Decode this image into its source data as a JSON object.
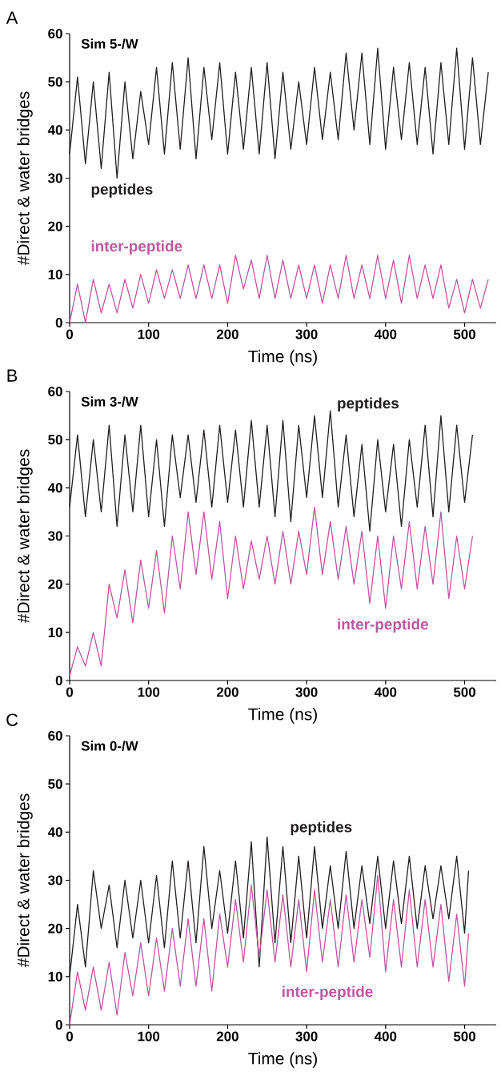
{
  "chart_data": [
    {
      "type": "line",
      "title": "Sim 5-/W",
      "xlabel": "Time (ns)",
      "ylabel": "#Direct & water bridges",
      "annotations": [
        "A"
      ],
      "xlim": [
        0,
        540
      ],
      "ylim": [
        0,
        60
      ],
      "xticks": [
        0,
        100,
        200,
        300,
        400,
        500
      ],
      "yticks": [
        0,
        10,
        20,
        30,
        40,
        50,
        60
      ],
      "x": [
        0,
        10,
        20,
        30,
        40,
        50,
        60,
        70,
        80,
        90,
        100,
        110,
        120,
        130,
        140,
        150,
        160,
        170,
        180,
        190,
        200,
        210,
        220,
        230,
        240,
        250,
        260,
        270,
        280,
        290,
        300,
        310,
        320,
        330,
        340,
        350,
        360,
        370,
        380,
        390,
        400,
        410,
        420,
        430,
        440,
        450,
        460,
        470,
        480,
        490,
        500,
        510,
        520,
        530
      ],
      "series": [
        {
          "name": "peptides",
          "color": "#231f20",
          "values": [
            35,
            51,
            33,
            50,
            32,
            52,
            30,
            50,
            34,
            48,
            37,
            53,
            35,
            54,
            36,
            55,
            34,
            53,
            38,
            54,
            35,
            52,
            36,
            53,
            35,
            54,
            34,
            52,
            36,
            50,
            37,
            53,
            38,
            52,
            38,
            56,
            40,
            56,
            37,
            57,
            36,
            53,
            38,
            54,
            37,
            53,
            35,
            54,
            37,
            57,
            36,
            55,
            37,
            52
          ]
        },
        {
          "name": "inter-peptide",
          "color": "#c1569f",
          "values": [
            0,
            8,
            0,
            9,
            2,
            8,
            2,
            9,
            3,
            10,
            4,
            11,
            5,
            11,
            5,
            12,
            5,
            12,
            5,
            12,
            4,
            14,
            7,
            13,
            5,
            14,
            5,
            13,
            5,
            12,
            5,
            12,
            4,
            12,
            5,
            14,
            5,
            12,
            5,
            14,
            5,
            13,
            4,
            14,
            5,
            12,
            5,
            12,
            3,
            9,
            2,
            9,
            3,
            9
          ]
        }
      ]
    },
    {
      "type": "line",
      "title": "Sim 3-/W",
      "xlabel": "Time (ns)",
      "ylabel": "#Direct & water bridges",
      "annotations": [
        "B"
      ],
      "xlim": [
        0,
        540
      ],
      "ylim": [
        0,
        60
      ],
      "xticks": [
        0,
        100,
        200,
        300,
        400,
        500
      ],
      "yticks": [
        0,
        10,
        20,
        30,
        40,
        50,
        60
      ],
      "x": [
        0,
        10,
        20,
        30,
        40,
        50,
        60,
        70,
        80,
        90,
        100,
        110,
        120,
        130,
        140,
        150,
        160,
        170,
        180,
        190,
        200,
        210,
        220,
        230,
        240,
        250,
        260,
        270,
        280,
        290,
        300,
        310,
        320,
        330,
        340,
        350,
        360,
        370,
        380,
        390,
        400,
        410,
        420,
        430,
        440,
        450,
        460,
        470,
        480,
        490,
        500,
        510
      ],
      "series": [
        {
          "name": "peptides",
          "color": "#231f20",
          "values": [
            36,
            51,
            34,
            50,
            35,
            53,
            32,
            51,
            35,
            53,
            34,
            50,
            32,
            51,
            38,
            51,
            37,
            52,
            36,
            53,
            37,
            52,
            36,
            54,
            36,
            53,
            34,
            54,
            33,
            53,
            38,
            55,
            38,
            56,
            36,
            51,
            34,
            49,
            31,
            50,
            35,
            49,
            32,
            50,
            36,
            53,
            34,
            55,
            35,
            53,
            37,
            51
          ]
        },
        {
          "name": "inter-peptide",
          "color": "#c1569f",
          "values": [
            1,
            7,
            3,
            10,
            3,
            20,
            13,
            23,
            12,
            25,
            15,
            27,
            14,
            30,
            19,
            35,
            22,
            35,
            21,
            33,
            17,
            30,
            19,
            29,
            21,
            30,
            20,
            31,
            20,
            31,
            22,
            36,
            22,
            33,
            21,
            32,
            20,
            31,
            16,
            30,
            15,
            30,
            19,
            33,
            19,
            32,
            20,
            35,
            17,
            30,
            19,
            30
          ]
        }
      ]
    },
    {
      "type": "line",
      "title": "Sim 0-/W",
      "xlabel": "Time (ns)",
      "ylabel": "#Direct & water bridges",
      "annotations": [
        "C"
      ],
      "xlim": [
        0,
        540
      ],
      "ylim": [
        0,
        60
      ],
      "xticks": [
        0,
        100,
        200,
        300,
        400,
        500
      ],
      "yticks": [
        0,
        10,
        20,
        30,
        40,
        50,
        60
      ],
      "x": [
        0,
        10,
        20,
        30,
        40,
        50,
        60,
        70,
        80,
        90,
        100,
        110,
        120,
        130,
        140,
        150,
        160,
        170,
        180,
        190,
        200,
        210,
        220,
        230,
        240,
        250,
        260,
        270,
        280,
        290,
        300,
        310,
        320,
        330,
        340,
        350,
        360,
        370,
        380,
        390,
        400,
        410,
        420,
        430,
        440,
        450,
        460,
        470,
        480,
        490,
        500,
        505
      ],
      "series": [
        {
          "name": "peptides",
          "color": "#231f20",
          "values": [
            10,
            25,
            12,
            32,
            20,
            29,
            16,
            30,
            18,
            30,
            17,
            31,
            16,
            34,
            18,
            34,
            17,
            37,
            20,
            32,
            19,
            34,
            18,
            38,
            12,
            39,
            17,
            37,
            17,
            35,
            18,
            37,
            20,
            33,
            20,
            36,
            20,
            33,
            21,
            35,
            20,
            34,
            21,
            35,
            20,
            33,
            22,
            33,
            22,
            35,
            19,
            32
          ]
        },
        {
          "name": "inter-peptide",
          "color": "#c1569f",
          "values": [
            0,
            11,
            3,
            12,
            3,
            13,
            2,
            15,
            6,
            17,
            6,
            18,
            7,
            20,
            8,
            22,
            8,
            22,
            7,
            23,
            12,
            26,
            13,
            29,
            14,
            28,
            13,
            27,
            12,
            26,
            11,
            28,
            13,
            26,
            12,
            27,
            13,
            26,
            14,
            31,
            11,
            26,
            12,
            28,
            12,
            26,
            12,
            25,
            9,
            23,
            8,
            19
          ]
        }
      ]
    }
  ]
}
